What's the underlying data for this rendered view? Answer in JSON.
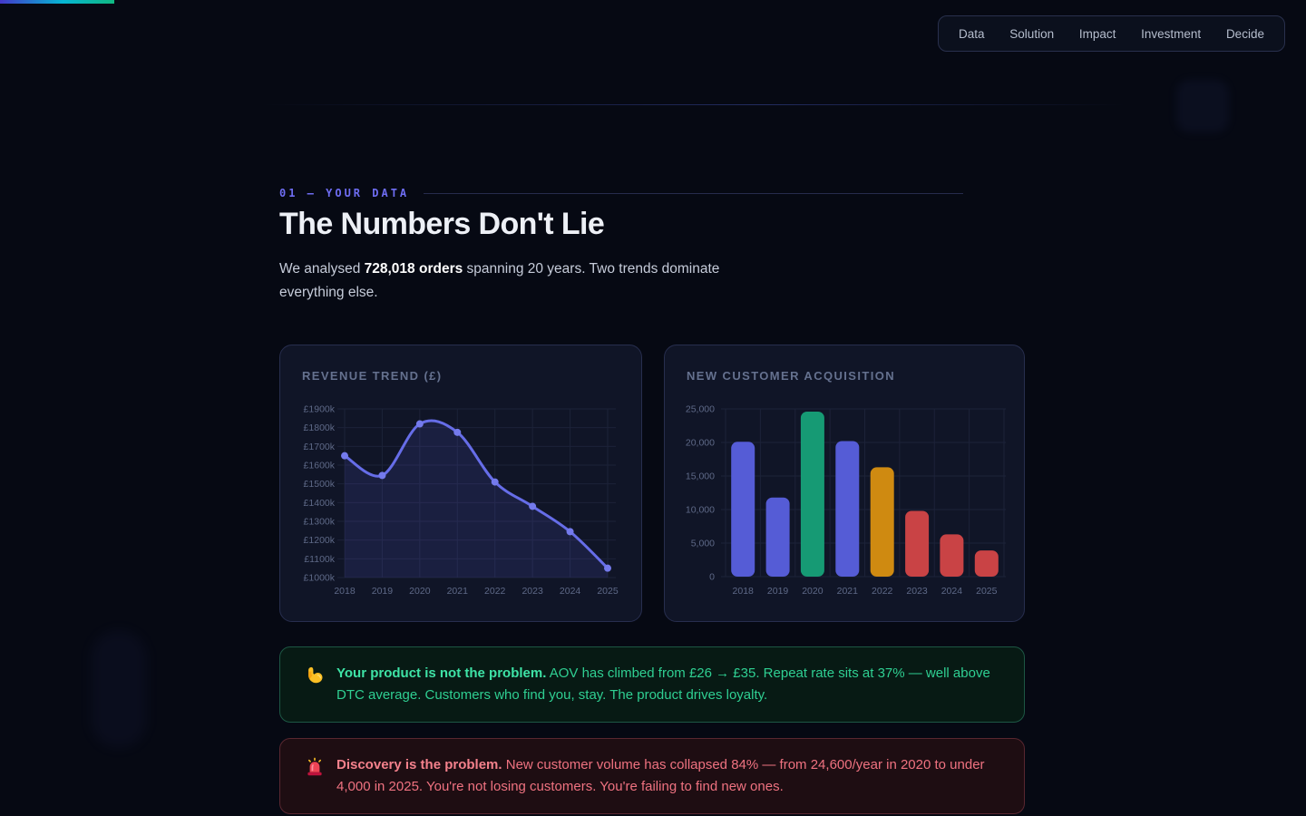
{
  "progress_bar": {
    "colors": [
      "#4338ca",
      "#06b6d4",
      "#10b981"
    ]
  },
  "nav": {
    "items": [
      {
        "label": "Data"
      },
      {
        "label": "Solution"
      },
      {
        "label": "Impact"
      },
      {
        "label": "Investment"
      },
      {
        "label": "Decide"
      }
    ]
  },
  "section": {
    "eyebrow": "01 — YOUR DATA",
    "title": "The Numbers Don't Lie",
    "intro_prefix": "We analysed ",
    "intro_bold": "728,018 orders",
    "intro_suffix": " spanning 20 years. Two trends dominate everything else."
  },
  "chart_data": [
    {
      "type": "line",
      "title": "REVENUE TREND (£)",
      "x": [
        "2018",
        "2019",
        "2020",
        "2021",
        "2022",
        "2023",
        "2024",
        "2025"
      ],
      "values": [
        1650,
        1545,
        1820,
        1775,
        1510,
        1380,
        1245,
        1050
      ],
      "unit": "£ thousands",
      "ylim": [
        1000,
        1900
      ],
      "y_tick_step": 100,
      "y_tick_format": "£{v}k",
      "grid": true,
      "legend": "none",
      "line_color": "#666de8",
      "point_color": "#747aec",
      "area_color": "rgba(99,102,241,0.13)"
    },
    {
      "type": "bar",
      "title": "NEW CUSTOMER ACQUISITION",
      "categories": [
        "2018",
        "2019",
        "2020",
        "2021",
        "2022",
        "2023",
        "2024",
        "2025"
      ],
      "values": [
        20100,
        11800,
        24600,
        20200,
        16300,
        9800,
        6300,
        3900
      ],
      "ylim": [
        0,
        25000
      ],
      "y_tick_step": 5000,
      "grid": true,
      "legend": "none",
      "bar_colors": [
        "#555cd6",
        "#555cd6",
        "#169a74",
        "#555cd6",
        "#cf8a11",
        "#c94345",
        "#c94345",
        "#c94345"
      ]
    }
  ],
  "callouts": [
    {
      "icon": "muscle",
      "bold": "Your product is not the problem.",
      "text": " AOV has climbed from £26 → £35. Repeat rate sits at 37% — well above DTC average. Customers who find you, stay. The product drives loyalty.",
      "theme": "positive"
    },
    {
      "icon": "siren",
      "bold": "Discovery is the problem.",
      "text": " New customer volume has collapsed 84% — from 24,600/year in 2020 to under 4,000 in 2025. You're not losing customers. You're failing to find new ones.",
      "theme": "negative"
    }
  ]
}
